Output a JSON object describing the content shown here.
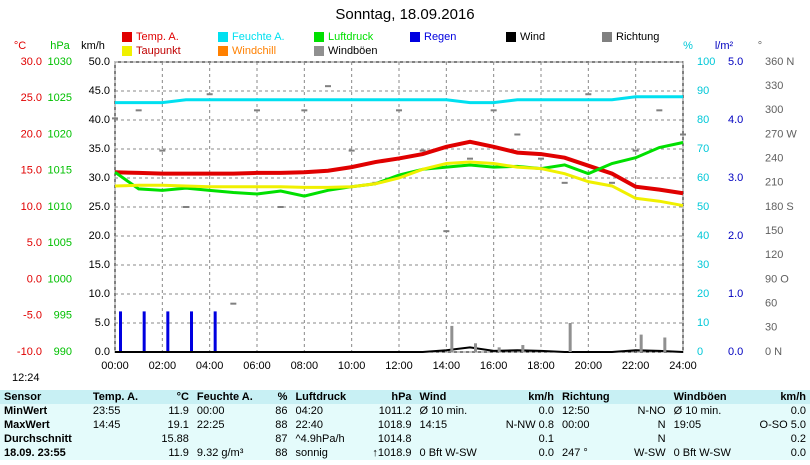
{
  "chart_data": {
    "type": "line",
    "title": "Sonntag, 18.09.2016",
    "time_label": "12:24",
    "x": [
      0,
      1,
      2,
      3,
      4,
      5,
      6,
      7,
      8,
      9,
      10,
      11,
      12,
      13,
      14,
      15,
      16,
      17,
      18,
      19,
      20,
      21,
      22,
      23,
      24
    ],
    "xlim": [
      0,
      24
    ],
    "xticks": [
      {
        "value": 0,
        "label": "00:00"
      },
      {
        "value": 2,
        "label": "02:00"
      },
      {
        "value": 4,
        "label": "04:00"
      },
      {
        "value": 6,
        "label": "06:00"
      },
      {
        "value": 8,
        "label": "08:00"
      },
      {
        "value": 10,
        "label": "10:00"
      },
      {
        "value": 12,
        "label": "12:00"
      },
      {
        "value": 14,
        "label": "14:00"
      },
      {
        "value": 16,
        "label": "16:00"
      },
      {
        "value": 18,
        "label": "18:00"
      },
      {
        "value": 20,
        "label": "20:00"
      },
      {
        "value": 22,
        "label": "22:00"
      },
      {
        "value": 24,
        "label": "24:00"
      }
    ],
    "grid": true,
    "axes": [
      {
        "key": "temp",
        "label": "°C",
        "color": "#e00000",
        "lim": [
          -10,
          30
        ],
        "ticks": [
          {
            "value": -10,
            "label": "-10.0"
          },
          {
            "value": -5,
            "label": "-5.0"
          },
          {
            "value": 0,
            "label": "0.0"
          },
          {
            "value": 5,
            "label": "5.0"
          },
          {
            "value": 10,
            "label": "10.0"
          },
          {
            "value": 15,
            "label": "15.0"
          },
          {
            "value": 20,
            "label": "20.0"
          },
          {
            "value": 25,
            "label": "25.0"
          },
          {
            "value": 30,
            "label": "30.0"
          }
        ]
      },
      {
        "key": "hpa",
        "label": "hPa",
        "color": "#00c000",
        "lim": [
          990,
          1030
        ],
        "ticks": [
          990,
          995,
          1000,
          1005,
          1010,
          1015,
          1020,
          1025,
          1030
        ]
      },
      {
        "key": "kmh",
        "label": "km/h",
        "color": "#000000",
        "lim": [
          0,
          50
        ],
        "ticks": [
          {
            "value": 0,
            "label": "0.0"
          },
          {
            "value": 5,
            "label": "5.0"
          },
          {
            "value": 10,
            "label": "10.0"
          },
          {
            "value": 15,
            "label": "15.0"
          },
          {
            "value": 20,
            "label": "20.0"
          },
          {
            "value": 25,
            "label": "25.0"
          },
          {
            "value": 30,
            "label": "30.0"
          },
          {
            "value": 35,
            "label": "35.0"
          },
          {
            "value": 40,
            "label": "40.0"
          },
          {
            "value": 45,
            "label": "45.0"
          },
          {
            "value": 50,
            "label": "50.0"
          }
        ]
      },
      {
        "key": "pct",
        "label": "%",
        "color": "#00c8d8",
        "lim": [
          0,
          100
        ],
        "ticks": [
          0,
          10,
          20,
          30,
          40,
          50,
          60,
          70,
          80,
          90,
          100
        ]
      },
      {
        "key": "rain",
        "label": "l/m²",
        "color": "#0000c0",
        "lim": [
          0,
          5
        ],
        "ticks": [
          {
            "value": 0,
            "label": "0.0"
          },
          {
            "value": 1,
            "label": "1.0"
          },
          {
            "value": 2,
            "label": "2.0"
          },
          {
            "value": 3,
            "label": "3.0"
          },
          {
            "value": 4,
            "label": "4.0"
          },
          {
            "value": 5,
            "label": "5.0"
          }
        ]
      },
      {
        "key": "deg",
        "label": "°",
        "color": "#606060",
        "lim": [
          0,
          360
        ],
        "ticks": [
          {
            "value": 0,
            "label": "0 N"
          },
          30,
          60,
          {
            "value": 90,
            "label": "90 O"
          },
          120,
          150,
          {
            "value": 180,
            "label": "180 S"
          },
          210,
          240,
          {
            "value": 270,
            "label": "270 W"
          },
          300,
          330,
          {
            "value": 360,
            "label": "360 N"
          }
        ]
      }
    ],
    "series": [
      {
        "name": "Temp. A.",
        "color": "#e00000",
        "axis": "temp",
        "style": "line",
        "width": 4,
        "values": [
          14.8,
          14.7,
          14.6,
          14.6,
          14.6,
          14.6,
          14.7,
          14.7,
          14.8,
          15.0,
          15.5,
          16.2,
          16.7,
          17.3,
          18.3,
          19.0,
          18.3,
          17.5,
          17.3,
          16.8,
          15.7,
          14.6,
          12.8,
          12.4,
          11.9
        ]
      },
      {
        "name": "Feuchte A.",
        "color": "#00e0f0",
        "axis": "pct",
        "style": "line",
        "width": 3,
        "values": [
          86,
          86,
          86,
          87,
          87,
          87,
          87,
          87,
          87,
          87,
          87,
          87,
          87,
          87,
          87,
          86,
          86,
          87,
          87,
          87,
          87,
          87,
          88,
          88,
          88
        ]
      },
      {
        "name": "Luftdruck",
        "color": "#00e000",
        "axis": "hpa",
        "style": "line",
        "width": 3,
        "values": [
          1014.8,
          1012.5,
          1012.3,
          1012.6,
          1012.3,
          1012.0,
          1011.8,
          1012.2,
          1011.5,
          1012.3,
          1012.8,
          1013.2,
          1014.4,
          1015.2,
          1015.5,
          1015.8,
          1015.5,
          1015.6,
          1015.3,
          1015.8,
          1014.6,
          1016.0,
          1016.8,
          1018.2,
          1018.9
        ]
      },
      {
        "name": "Regen",
        "color": "#0000e0",
        "axis": "rain",
        "style": "bar",
        "width": 3,
        "values": [
          0.7,
          0.7,
          0.7,
          0.7,
          0.7,
          0,
          0,
          0,
          0,
          0,
          0,
          0,
          0,
          0,
          0,
          0,
          0,
          0,
          0,
          0,
          0,
          0,
          0,
          0,
          0
        ]
      },
      {
        "name": "Wind",
        "color": "#000000",
        "axis": "kmh",
        "style": "line",
        "width": 2,
        "values": [
          0,
          0,
          0,
          0,
          0,
          0,
          0,
          0,
          0,
          0,
          0,
          0,
          0,
          0,
          0.3,
          0.8,
          0.2,
          0.3,
          0.2,
          0,
          0,
          0,
          0.3,
          0.2,
          0
        ]
      },
      {
        "name": "Richtung",
        "color": "#808080",
        "axis": "deg",
        "style": "dots",
        "width": 2,
        "values": [
          290,
          300,
          250,
          180,
          320,
          60,
          300,
          180,
          300,
          330,
          250,
          210,
          300,
          250,
          150,
          240,
          300,
          270,
          240,
          210,
          320,
          210,
          250,
          300,
          270
        ]
      },
      {
        "name": "Taupunkt",
        "color": "#f0f000",
        "axis": "temp",
        "style": "line",
        "width": 3,
        "values": [
          12.9,
          13.0,
          13.0,
          12.9,
          12.8,
          12.8,
          12.8,
          12.8,
          12.7,
          12.7,
          12.8,
          13.2,
          14.0,
          15.2,
          16.0,
          16.2,
          16.0,
          15.5,
          15.3,
          14.6,
          13.5,
          12.9,
          11.2,
          10.8,
          10.2
        ]
      },
      {
        "name": "Windchill",
        "color": "#ff8000",
        "axis": "temp",
        "style": "line",
        "width": 2,
        "values": [
          null,
          null,
          null,
          null,
          null,
          null,
          null,
          null,
          null,
          null,
          null,
          null,
          null,
          null,
          null,
          null,
          null,
          null,
          null,
          null,
          null,
          null,
          null,
          null,
          null
        ]
      },
      {
        "name": "Windböen",
        "color": "#909090",
        "axis": "kmh",
        "style": "bar",
        "width": 3,
        "values": [
          0,
          0,
          0,
          0,
          0,
          0,
          0,
          0,
          0,
          0,
          0,
          0,
          0,
          0,
          4.5,
          1.5,
          0.8,
          1.2,
          0,
          5.0,
          0,
          0,
          3.0,
          2.5,
          0
        ]
      }
    ]
  },
  "table": {
    "headers": [
      "Sensor",
      "Temp. A.",
      "°C",
      "Feuchte A.",
      "%",
      "Luftdruck",
      "hPa",
      "Wind",
      "km/h",
      "Richtung",
      "",
      "Windböen",
      "km/h"
    ],
    "rows": [
      [
        "MinWert",
        "23:55",
        "11.9",
        "00:00",
        "86",
        "04:20",
        "1011.2",
        "Ø 10 min.",
        "0.0",
        "12:50",
        "N-NO",
        "Ø 10 min.",
        "0.0"
      ],
      [
        "MaxWert",
        "14:45",
        "19.1",
        "22:25",
        "88",
        "22:40",
        "1018.9",
        "14:15",
        "N-NW 0.8",
        "00:00",
        "N",
        "19:05",
        "O-SO 5.0"
      ],
      [
        "Durchschnitt",
        "",
        "15.88",
        "",
        "87",
        "^4.9hPa/h",
        "1014.8",
        "",
        "0.1",
        "",
        "N",
        "",
        "0.2"
      ],
      [
        "18.09. 23:55",
        "",
        "11.9",
        "9.32 g/m³",
        "88",
        "sonnig",
        "↑1018.9",
        "0 Bft W-SW",
        "0.0",
        "247 °",
        "W-SW",
        "0 Bft W-SW",
        "0.0"
      ]
    ]
  }
}
